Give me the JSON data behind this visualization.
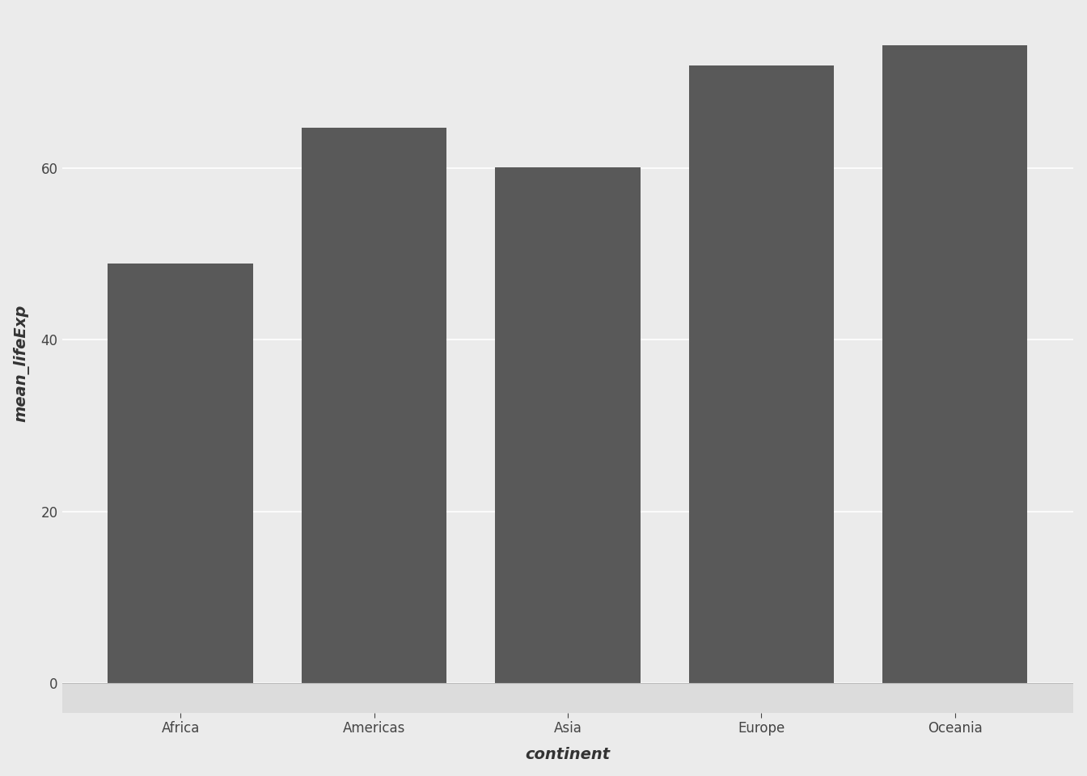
{
  "categories": [
    "Africa",
    "Americas",
    "Asia",
    "Europe",
    "Oceania"
  ],
  "values": [
    48.87,
    64.66,
    60.06,
    71.9,
    74.33
  ],
  "bar_color": "#595959",
  "background_color": "#EBEBEB",
  "panel_background": "#EBEBEB",
  "grid_color": "#FFFFFF",
  "xlabel": "continent",
  "ylabel": "mean_lifeExp",
  "xlabel_fontsize": 14,
  "ylabel_fontsize": 14,
  "tick_fontsize": 12,
  "ylim": [
    -3.5,
    78
  ],
  "yticks": [
    0,
    20,
    40,
    60
  ],
  "bar_width": 0.75
}
